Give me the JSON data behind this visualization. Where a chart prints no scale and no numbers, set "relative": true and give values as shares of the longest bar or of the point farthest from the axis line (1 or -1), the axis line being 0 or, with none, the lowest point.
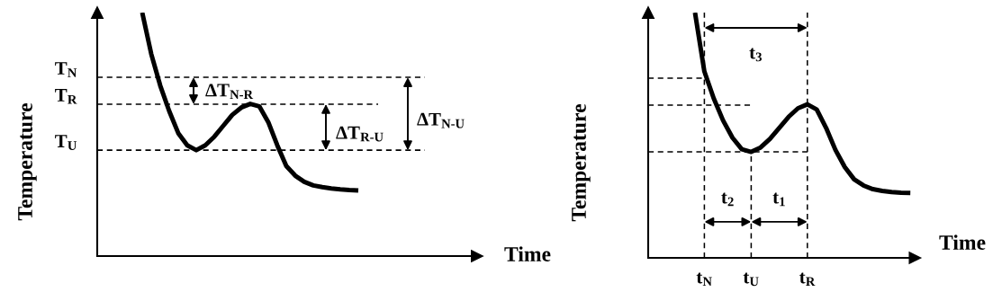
{
  "chart_data": [
    {
      "type": "line",
      "relative": true,
      "xlabel": "Time",
      "ylabel": "Temperature",
      "color": "#000000",
      "line_style": "solid",
      "marker": "none",
      "grid": false,
      "legend": false,
      "tick_labels": false,
      "categories": [
        null,
        null,
        null,
        null,
        null,
        null,
        null,
        null,
        null,
        null,
        null,
        null,
        null,
        null,
        null,
        null,
        null,
        null,
        null,
        null,
        null,
        null,
        null,
        null,
        null,
        null,
        null,
        null,
        null,
        null,
        null,
        null,
        null,
        null,
        null,
        null,
        null,
        null,
        null,
        null,
        null,
        null,
        null
      ],
      "values": [
        null,
        null,
        null,
        null,
        null,
        1,
        0.83,
        0.7,
        0.595,
        0.505,
        0.455,
        0.435,
        0.455,
        0.49,
        0.535,
        0.58,
        0.61,
        0.625,
        0.615,
        0.55,
        0.455,
        0.37,
        0.33,
        0.305,
        0.29,
        0.283,
        0.278,
        0.274,
        0.271,
        0.269,
        null,
        null,
        null,
        null,
        null,
        null,
        null,
        null,
        null,
        null,
        null,
        null,
        null
      ],
      "ref_lines": [
        {
          "axis": "y",
          "value": 0.734,
          "label": "T$_{N}$",
          "line_style": "dashed",
          "color": "#000000"
        },
        {
          "axis": "y",
          "value": 0.624,
          "label": "T$_{R}$",
          "line_style": "dashed",
          "color": "#000000"
        },
        {
          "axis": "y",
          "value": 0.435,
          "label": "T$_{U}$",
          "line_style": "dashed",
          "color": "#000000"
        }
      ],
      "annotations": [
        "ΔT$_{N-R}$",
        "ΔT$_{R-U}$",
        "ΔT$_{N-U}$"
      ]
    },
    {
      "type": "line",
      "relative": true,
      "xlabel": "Time",
      "ylabel": "Temperature",
      "color": "#000000",
      "line_style": "solid",
      "marker": "none",
      "grid": false,
      "legend": false,
      "tick_labels": "x",
      "categories": [
        null,
        null,
        null,
        null,
        null,
        null,
        "t$_{N}$",
        null,
        null,
        null,
        null,
        "t$_{U}$",
        null,
        null,
        null,
        null,
        null,
        "t$_{R}$",
        null,
        null,
        null,
        null,
        null,
        null,
        null,
        null,
        null,
        null,
        null
      ],
      "values": [
        null,
        null,
        null,
        null,
        null,
        1,
        0.76,
        0.65,
        0.56,
        0.49,
        0.443,
        0.432,
        0.45,
        0.485,
        0.53,
        0.575,
        0.61,
        0.626,
        0.605,
        0.53,
        0.44,
        0.37,
        0.32,
        0.295,
        0.28,
        0.273,
        0.268,
        0.266,
        0.265
      ],
      "ref_lines": [
        {
          "axis": "y",
          "value": 0.733,
          "label": null,
          "line_style": "dashed",
          "color": "#000000"
        },
        {
          "axis": "y",
          "value": 0.623,
          "label": null,
          "line_style": "dashed",
          "color": "#000000"
        },
        {
          "axis": "y",
          "value": 0.432,
          "label": null,
          "line_style": "dashed",
          "color": "#000000"
        },
        {
          "axis": "x",
          "value": "t$_{N}$",
          "label": null,
          "line_style": "dashed",
          "color": "#000000"
        },
        {
          "axis": "x",
          "value": "t$_{U}$",
          "label": null,
          "line_style": "dashed",
          "color": "#000000"
        },
        {
          "axis": "x",
          "value": "t$_{R}$",
          "label": null,
          "line_style": "dashed",
          "color": "#000000"
        }
      ],
      "annotations": [
        "t$_{3}$",
        "t$_{2}$",
        "t$_{1}$"
      ]
    }
  ]
}
